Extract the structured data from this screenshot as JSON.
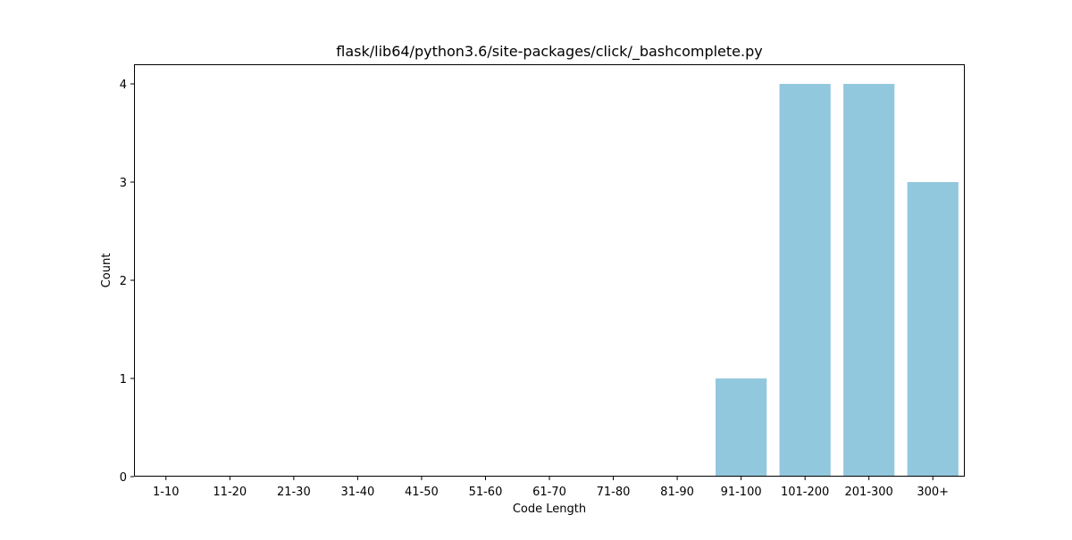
{
  "chart_data": {
    "type": "bar",
    "title": "flask/lib64/python3.6/site-packages/click/_bashcomplete.py",
    "xlabel": "Code Length",
    "ylabel": "Count",
    "categories": [
      "1-10",
      "11-20",
      "21-30",
      "31-40",
      "41-50",
      "51-60",
      "61-70",
      "71-80",
      "81-90",
      "91-100",
      "101-200",
      "201-300",
      "300+"
    ],
    "values": [
      0,
      0,
      0,
      0,
      0,
      0,
      0,
      0,
      0,
      1,
      4,
      4,
      3
    ],
    "ylim": [
      0,
      4.2
    ],
    "yticks": [
      0,
      1,
      2,
      3,
      4
    ],
    "grid": false,
    "bar_color": "#92c8de"
  }
}
